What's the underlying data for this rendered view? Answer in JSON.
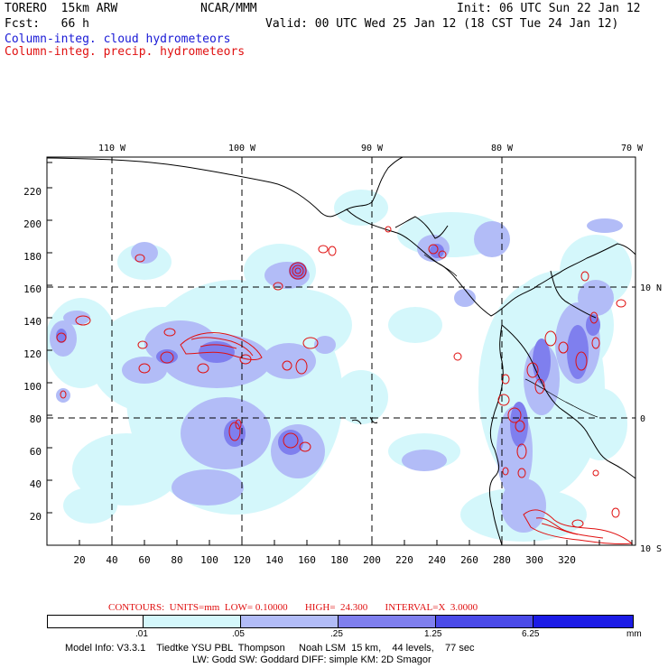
{
  "header": {
    "model": "TORERO  15km ARW",
    "org": "NCAR/MMM",
    "init": "Init: 06 UTC Sun 22 Jan 12",
    "fcst": "Fcst:   66 h",
    "valid": "Valid: 00 UTC Wed 25 Jan 12 (18 CST Tue 24 Jan 12)",
    "field1": "Column-integ. cloud hydrometeors",
    "field2": "Column-integ. precip. hydrometeors"
  },
  "axes": {
    "lon_labels": [
      "110 W",
      "100 W",
      "90 W",
      "80 W",
      "70 W"
    ],
    "lat_labels": [
      "10 N",
      "0",
      "10 S"
    ],
    "x_ticks": [
      "20",
      "40",
      "60",
      "80",
      "100",
      "120",
      "140",
      "160",
      "180",
      "200",
      "220",
      "240",
      "260",
      "280",
      "300",
      "320"
    ],
    "y_ticks": [
      "20",
      "40",
      "60",
      "80",
      "100",
      "120",
      "140",
      "160",
      "180",
      "200",
      "220"
    ]
  },
  "contours": {
    "label": "CONTOURS:  UNITS=mm  LOW= 0.10000       HIGH=  24.300       INTERVAL=X  3.0000"
  },
  "colorbar": {
    "unit": "mm",
    "ticks": [
      ".01",
      ".05",
      ".25",
      "1.25",
      "6.25"
    ],
    "colors": [
      "#ffffff",
      "#d4f7fb",
      "#b2bcf7",
      "#7f7fee",
      "#4a4ae8",
      "#1c1ce6"
    ]
  },
  "footer": {
    "line1": "Model Info: V3.3.1    Tiedtke YSU PBL  Thompson     Noah LSM  15 km,    44 levels,    77 sec",
    "line2": "LW: Godd SW: Goddard DIFF: simple KM: 2D Smagor"
  }
}
